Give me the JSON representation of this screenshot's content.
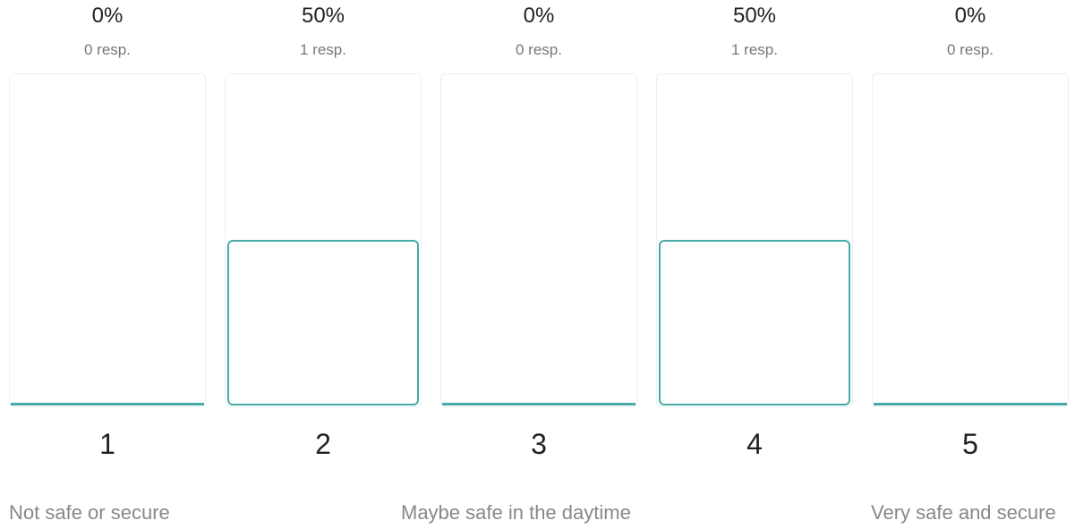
{
  "chart_data": {
    "type": "bar",
    "categories": [
      "1",
      "2",
      "3",
      "4",
      "5"
    ],
    "values": [
      0,
      50,
      0,
      50,
      0
    ],
    "value_labels": [
      "0%",
      "50%",
      "0%",
      "50%",
      "0%"
    ],
    "responses": [
      "0 resp.",
      "1 resp.",
      "0 resp.",
      "1 resp.",
      "0 resp."
    ],
    "ylim": [
      0,
      100
    ],
    "scale_labels": {
      "low": "Not safe or secure",
      "mid": "Maybe safe in the daytime",
      "high": "Very safe and secure"
    }
  },
  "colors": {
    "accent": "#4aaaa6",
    "track_border": "#e6f1f1"
  }
}
